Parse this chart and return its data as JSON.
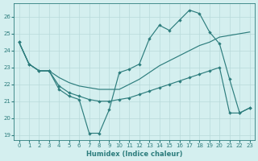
{
  "xlabel": "Humidex (Indice chaleur)",
  "bg_color": "#d4efef",
  "line_color": "#2d7d7d",
  "grid_color": "#b8dada",
  "xlim": [
    -0.5,
    23.5
  ],
  "ylim": [
    18.7,
    26.8
  ],
  "yticks": [
    19,
    20,
    21,
    22,
    23,
    24,
    25,
    26
  ],
  "xticks": [
    0,
    1,
    2,
    3,
    4,
    5,
    6,
    7,
    8,
    9,
    10,
    11,
    12,
    13,
    14,
    15,
    16,
    17,
    18,
    19,
    20,
    21,
    22,
    23
  ],
  "line1_x": [
    0,
    1,
    2,
    3,
    4,
    5,
    6,
    7,
    8,
    9,
    10,
    11,
    12,
    13,
    14,
    15,
    16,
    17,
    18,
    19,
    20,
    21,
    22,
    23
  ],
  "line1_y": [
    24.5,
    23.2,
    22.8,
    22.8,
    21.7,
    21.3,
    21.1,
    19.1,
    19.1,
    20.5,
    22.7,
    22.9,
    23.2,
    24.7,
    25.5,
    25.2,
    25.8,
    26.4,
    26.2,
    25.1,
    24.4,
    22.3,
    20.3,
    20.6
  ],
  "line2_x": [
    0,
    1,
    2,
    3,
    4,
    5,
    6,
    7,
    8,
    9,
    10,
    11,
    12,
    13,
    14,
    15,
    16,
    17,
    18,
    19,
    20,
    21,
    22,
    23
  ],
  "line2_y": [
    24.5,
    23.2,
    22.8,
    22.8,
    21.9,
    21.5,
    21.3,
    21.1,
    21.0,
    21.0,
    21.1,
    21.2,
    21.4,
    21.6,
    21.8,
    22.0,
    22.2,
    22.4,
    22.6,
    22.8,
    23.0,
    20.3,
    20.3,
    20.6
  ],
  "line3_x": [
    0,
    1,
    2,
    3,
    4,
    5,
    6,
    7,
    8,
    9,
    10,
    11,
    12,
    13,
    14,
    15,
    16,
    17,
    18,
    19,
    20,
    21,
    22,
    23
  ],
  "line3_y": [
    24.5,
    23.2,
    22.8,
    22.8,
    22.4,
    22.1,
    21.9,
    21.8,
    21.7,
    21.7,
    21.7,
    22.0,
    22.3,
    22.7,
    23.1,
    23.4,
    23.7,
    24.0,
    24.3,
    24.5,
    24.8,
    24.9,
    25.0,
    25.1
  ],
  "line1_has_markers": true,
  "line2_has_markers": true,
  "line3_has_markers": false
}
